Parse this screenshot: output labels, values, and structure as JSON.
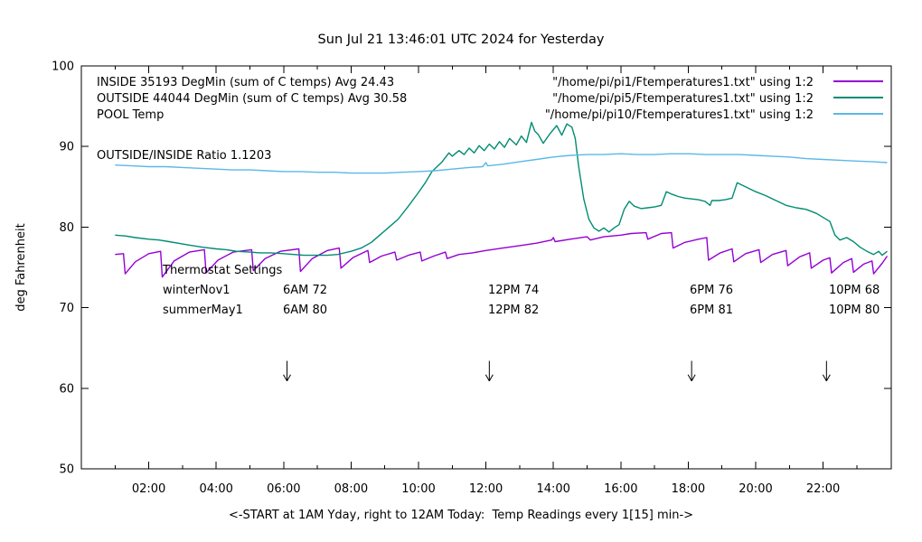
{
  "title": "Sun Jul 21 13:46:01 UTC 2024 for Yesterday",
  "legend": {
    "entries": [
      {
        "label": "INSIDE 35193 DegMin (sum of C temps) Avg 24.43",
        "file": "\"/home/pi/pi1/Ftemperatures1.txt\" using 1:2",
        "color": "#9400D3"
      },
      {
        "label": "OUTSIDE 44044 DegMin (sum of C temps) Avg 30.58",
        "file": "\"/home/pi/pi5/Ftemperatures1.txt\" using 1:2",
        "color": "#008C72"
      },
      {
        "label": "POOL Temp",
        "file": "\"/home/pi/pi10/Ftemperatures1.txt\" using 1:2",
        "color": "#5BB8E8"
      }
    ]
  },
  "ratio_text": "OUTSIDE/INSIDE Ratio 1.1203",
  "thermostat": {
    "header": "Thermostat Settings",
    "rows": [
      {
        "label": "winterNov1",
        "cells": [
          "6AM 72",
          "12PM 74",
          "6PM 76",
          "10PM 68"
        ]
      },
      {
        "label": "summerMay1",
        "cells": [
          "6AM 80",
          "12PM 82",
          "6PM 81",
          "10PM 80"
        ]
      }
    ]
  },
  "chart_data": {
    "type": "line",
    "title": "Sun Jul 21 13:46:01 UTC 2024 for Yesterday",
    "xlabel": "<-START at 1AM Yday, right to 12AM Today:  Temp Readings every 1[15] min->",
    "ylabel": "deg Fahrenheit",
    "xlim": [
      0,
      24
    ],
    "ylim": [
      50,
      100
    ],
    "grid": false,
    "legend_position": "top",
    "yticks": [
      50,
      60,
      70,
      80,
      90,
      100
    ],
    "xticks": [
      {
        "h": 2,
        "label": "02:00"
      },
      {
        "h": 4,
        "label": "04:00"
      },
      {
        "h": 6,
        "label": "06:00"
      },
      {
        "h": 8,
        "label": "08:00"
      },
      {
        "h": 10,
        "label": "10:00"
      },
      {
        "h": 12,
        "label": "12:00"
      },
      {
        "h": 14,
        "label": "14:00"
      },
      {
        "h": 16,
        "label": "16:00"
      },
      {
        "h": 18,
        "label": "18:00"
      },
      {
        "h": 20,
        "label": "20:00"
      },
      {
        "h": 22,
        "label": "22:00"
      }
    ],
    "xtick_minor_every_hours": 1,
    "arrows": {
      "hours": [
        6.1,
        12.1,
        18.1,
        22.1
      ],
      "from_temp": 63.4,
      "to_temp": 60.9
    },
    "series": [
      {
        "name": "INSIDE",
        "color": "#9400D3",
        "points": [
          [
            1.0,
            76.6
          ],
          [
            1.25,
            76.7
          ],
          [
            1.3,
            74.2
          ],
          [
            1.6,
            75.7
          ],
          [
            2.0,
            76.7
          ],
          [
            2.35,
            77.0
          ],
          [
            2.4,
            73.8
          ],
          [
            2.75,
            75.8
          ],
          [
            3.2,
            76.9
          ],
          [
            3.65,
            77.2
          ],
          [
            3.7,
            74.3
          ],
          [
            4.05,
            75.9
          ],
          [
            4.5,
            76.9
          ],
          [
            5.05,
            77.2
          ],
          [
            5.1,
            74.6
          ],
          [
            5.45,
            76.1
          ],
          [
            5.9,
            77.0
          ],
          [
            6.45,
            77.3
          ],
          [
            6.5,
            74.5
          ],
          [
            6.85,
            76.1
          ],
          [
            7.3,
            77.1
          ],
          [
            7.65,
            77.4
          ],
          [
            7.7,
            74.9
          ],
          [
            8.05,
            76.2
          ],
          [
            8.5,
            77.1
          ],
          [
            8.55,
            75.6
          ],
          [
            8.9,
            76.4
          ],
          [
            9.3,
            76.9
          ],
          [
            9.35,
            75.9
          ],
          [
            9.7,
            76.5
          ],
          [
            10.05,
            76.9
          ],
          [
            10.1,
            75.8
          ],
          [
            10.45,
            76.4
          ],
          [
            10.8,
            76.9
          ],
          [
            10.85,
            76.1
          ],
          [
            11.2,
            76.6
          ],
          [
            11.6,
            76.8
          ],
          [
            12.0,
            77.1
          ],
          [
            12.5,
            77.4
          ],
          [
            13.0,
            77.7
          ],
          [
            13.5,
            78.0
          ],
          [
            13.95,
            78.4
          ],
          [
            14.0,
            78.7
          ],
          [
            14.05,
            78.2
          ],
          [
            14.5,
            78.5
          ],
          [
            15.0,
            78.8
          ],
          [
            15.1,
            78.4
          ],
          [
            15.5,
            78.8
          ],
          [
            16.0,
            79.0
          ],
          [
            16.3,
            79.2
          ],
          [
            16.75,
            79.3
          ],
          [
            16.8,
            78.5
          ],
          [
            17.2,
            79.2
          ],
          [
            17.5,
            79.3
          ],
          [
            17.55,
            77.4
          ],
          [
            17.9,
            78.1
          ],
          [
            18.3,
            78.5
          ],
          [
            18.55,
            78.7
          ],
          [
            18.6,
            75.9
          ],
          [
            18.95,
            76.8
          ],
          [
            19.3,
            77.3
          ],
          [
            19.35,
            75.7
          ],
          [
            19.7,
            76.7
          ],
          [
            20.1,
            77.2
          ],
          [
            20.15,
            75.6
          ],
          [
            20.5,
            76.6
          ],
          [
            20.9,
            77.1
          ],
          [
            20.95,
            75.2
          ],
          [
            21.3,
            76.3
          ],
          [
            21.6,
            76.8
          ],
          [
            21.65,
            74.9
          ],
          [
            22.0,
            75.9
          ],
          [
            22.2,
            76.2
          ],
          [
            22.25,
            74.3
          ],
          [
            22.6,
            75.6
          ],
          [
            22.85,
            76.1
          ],
          [
            22.9,
            74.4
          ],
          [
            23.2,
            75.4
          ],
          [
            23.45,
            75.8
          ],
          [
            23.5,
            74.2
          ],
          [
            23.75,
            75.5
          ],
          [
            23.9,
            76.4
          ]
        ]
      },
      {
        "name": "OUTSIDE",
        "color": "#008C72",
        "points": [
          [
            1.0,
            79.0
          ],
          [
            1.3,
            78.9
          ],
          [
            1.6,
            78.7
          ],
          [
            2.0,
            78.5
          ],
          [
            2.3,
            78.4
          ],
          [
            2.6,
            78.2
          ],
          [
            3.0,
            77.9
          ],
          [
            3.3,
            77.7
          ],
          [
            3.6,
            77.5
          ],
          [
            4.0,
            77.3
          ],
          [
            4.3,
            77.2
          ],
          [
            4.6,
            77.0
          ],
          [
            5.0,
            76.9
          ],
          [
            5.3,
            76.8
          ],
          [
            5.6,
            76.8
          ],
          [
            6.0,
            76.7
          ],
          [
            6.3,
            76.6
          ],
          [
            6.6,
            76.5
          ],
          [
            7.0,
            76.5
          ],
          [
            7.3,
            76.5
          ],
          [
            7.6,
            76.6
          ],
          [
            8.0,
            77.0
          ],
          [
            8.3,
            77.4
          ],
          [
            8.6,
            78.1
          ],
          [
            8.85,
            79.0
          ],
          [
            9.1,
            79.9
          ],
          [
            9.4,
            81.0
          ],
          [
            9.7,
            82.6
          ],
          [
            10.0,
            84.3
          ],
          [
            10.2,
            85.5
          ],
          [
            10.4,
            86.9
          ],
          [
            10.7,
            88.1
          ],
          [
            10.9,
            89.2
          ],
          [
            11.0,
            88.8
          ],
          [
            11.2,
            89.5
          ],
          [
            11.35,
            89.0
          ],
          [
            11.5,
            89.8
          ],
          [
            11.65,
            89.2
          ],
          [
            11.8,
            90.1
          ],
          [
            11.95,
            89.5
          ],
          [
            12.1,
            90.3
          ],
          [
            12.25,
            89.7
          ],
          [
            12.4,
            90.6
          ],
          [
            12.55,
            89.9
          ],
          [
            12.7,
            91.0
          ],
          [
            12.9,
            90.2
          ],
          [
            13.05,
            91.3
          ],
          [
            13.2,
            90.5
          ],
          [
            13.35,
            93.0
          ],
          [
            13.45,
            91.9
          ],
          [
            13.55,
            91.5
          ],
          [
            13.7,
            90.4
          ],
          [
            13.9,
            91.6
          ],
          [
            14.1,
            92.6
          ],
          [
            14.25,
            91.4
          ],
          [
            14.4,
            92.8
          ],
          [
            14.55,
            92.4
          ],
          [
            14.65,
            91.0
          ],
          [
            14.75,
            87.5
          ],
          [
            14.9,
            83.5
          ],
          [
            15.05,
            81.0
          ],
          [
            15.2,
            79.9
          ],
          [
            15.35,
            79.5
          ],
          [
            15.5,
            79.9
          ],
          [
            15.65,
            79.4
          ],
          [
            15.8,
            79.9
          ],
          [
            15.95,
            80.3
          ],
          [
            16.1,
            82.2
          ],
          [
            16.25,
            83.2
          ],
          [
            16.4,
            82.6
          ],
          [
            16.6,
            82.3
          ],
          [
            16.8,
            82.4
          ],
          [
            17.0,
            82.5
          ],
          [
            17.2,
            82.7
          ],
          [
            17.35,
            84.4
          ],
          [
            17.5,
            84.1
          ],
          [
            17.7,
            83.8
          ],
          [
            17.9,
            83.6
          ],
          [
            18.1,
            83.5
          ],
          [
            18.3,
            83.4
          ],
          [
            18.5,
            83.2
          ],
          [
            18.65,
            82.7
          ],
          [
            18.7,
            83.3
          ],
          [
            18.9,
            83.3
          ],
          [
            19.1,
            83.4
          ],
          [
            19.3,
            83.6
          ],
          [
            19.45,
            85.5
          ],
          [
            19.6,
            85.2
          ],
          [
            19.8,
            84.8
          ],
          [
            20.0,
            84.4
          ],
          [
            20.3,
            83.9
          ],
          [
            20.6,
            83.3
          ],
          [
            20.9,
            82.7
          ],
          [
            21.2,
            82.4
          ],
          [
            21.5,
            82.2
          ],
          [
            21.8,
            81.7
          ],
          [
            22.0,
            81.2
          ],
          [
            22.2,
            80.7
          ],
          [
            22.35,
            79.0
          ],
          [
            22.5,
            78.4
          ],
          [
            22.7,
            78.7
          ],
          [
            22.9,
            78.2
          ],
          [
            23.1,
            77.5
          ],
          [
            23.3,
            77.0
          ],
          [
            23.5,
            76.6
          ],
          [
            23.65,
            77.0
          ],
          [
            23.75,
            76.5
          ],
          [
            23.9,
            77.0
          ]
        ]
      },
      {
        "name": "POOL",
        "color": "#5BB8E8",
        "points": [
          [
            1.0,
            87.7
          ],
          [
            1.5,
            87.6
          ],
          [
            2.0,
            87.5
          ],
          [
            2.5,
            87.5
          ],
          [
            3.0,
            87.4
          ],
          [
            3.5,
            87.3
          ],
          [
            4.0,
            87.2
          ],
          [
            4.5,
            87.1
          ],
          [
            5.0,
            87.1
          ],
          [
            5.5,
            87.0
          ],
          [
            6.0,
            86.9
          ],
          [
            6.5,
            86.9
          ],
          [
            7.0,
            86.8
          ],
          [
            7.5,
            86.8
          ],
          [
            8.0,
            86.7
          ],
          [
            8.5,
            86.7
          ],
          [
            9.0,
            86.7
          ],
          [
            9.5,
            86.8
          ],
          [
            10.0,
            86.9
          ],
          [
            10.5,
            87.0
          ],
          [
            11.0,
            87.2
          ],
          [
            11.5,
            87.4
          ],
          [
            11.9,
            87.5
          ],
          [
            12.0,
            88.0
          ],
          [
            12.05,
            87.6
          ],
          [
            12.5,
            87.8
          ],
          [
            13.0,
            88.1
          ],
          [
            13.5,
            88.4
          ],
          [
            14.0,
            88.7
          ],
          [
            14.5,
            88.9
          ],
          [
            15.0,
            89.0
          ],
          [
            15.5,
            89.0
          ],
          [
            16.0,
            89.1
          ],
          [
            16.5,
            89.0
          ],
          [
            17.0,
            89.0
          ],
          [
            17.5,
            89.1
          ],
          [
            18.0,
            89.1
          ],
          [
            18.5,
            89.0
          ],
          [
            19.0,
            89.0
          ],
          [
            19.5,
            89.0
          ],
          [
            20.0,
            88.9
          ],
          [
            20.5,
            88.8
          ],
          [
            21.0,
            88.7
          ],
          [
            21.5,
            88.5
          ],
          [
            22.0,
            88.4
          ],
          [
            22.5,
            88.3
          ],
          [
            23.0,
            88.2
          ],
          [
            23.5,
            88.1
          ],
          [
            23.9,
            88.0
          ]
        ]
      }
    ]
  }
}
